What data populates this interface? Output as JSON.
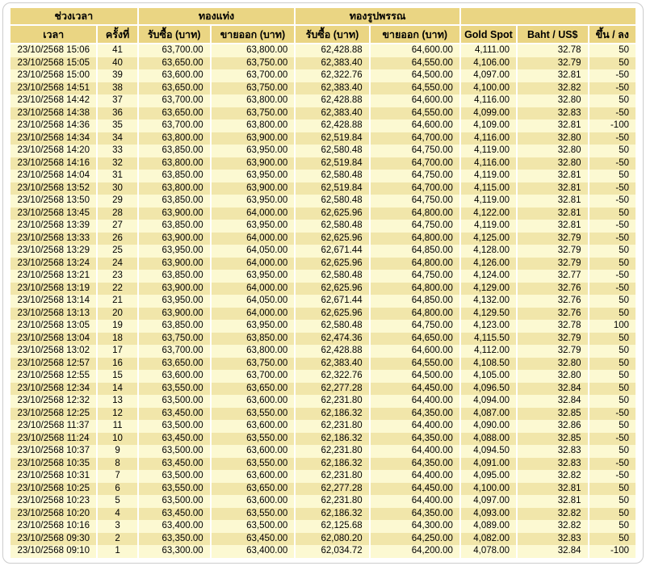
{
  "colors": {
    "header_bg": "#EAD583",
    "row_light": "#FCF9D2",
    "row_dark": "#F1E6AA",
    "separator": "#FFFFFF",
    "frame_border": "#CCCCCC",
    "text": "#000000"
  },
  "chart_data": {
    "type": "table",
    "header_groups": [
      {
        "label": "ช่วงเวลา",
        "colspan": 2
      },
      {
        "label": "ทองแท่ง",
        "colspan": 2
      },
      {
        "label": "ทองรูปพรรณ",
        "colspan": 2
      },
      {
        "label": "",
        "colspan": 3
      }
    ],
    "columns": [
      "เวลา",
      "ครั้งที่",
      "รับซื้อ (บาท)",
      "ขายออก (บาท)",
      "รับซื้อ (บาท)",
      "ขายออก (บาท)",
      "Gold Spot",
      "Baht / US$",
      "ขึ้น / ลง"
    ],
    "rows": [
      [
        "23/10/2568 15:06",
        "41",
        "63,700.00",
        "63,800.00",
        "62,428.88",
        "64,600.00",
        "4,111.00",
        "32.78",
        "50"
      ],
      [
        "23/10/2568 15:05",
        "40",
        "63,650.00",
        "63,750.00",
        "62,383.40",
        "64,550.00",
        "4,106.00",
        "32.79",
        "50"
      ],
      [
        "23/10/2568 15:00",
        "39",
        "63,600.00",
        "63,700.00",
        "62,322.76",
        "64,500.00",
        "4,097.00",
        "32.81",
        "-50"
      ],
      [
        "23/10/2568 14:51",
        "38",
        "63,650.00",
        "63,750.00",
        "62,383.40",
        "64,550.00",
        "4,100.00",
        "32.82",
        "-50"
      ],
      [
        "23/10/2568 14:42",
        "37",
        "63,700.00",
        "63,800.00",
        "62,428.88",
        "64,600.00",
        "4,116.00",
        "32.80",
        "50"
      ],
      [
        "23/10/2568 14:38",
        "36",
        "63,650.00",
        "63,750.00",
        "62,383.40",
        "64,550.00",
        "4,099.00",
        "32.83",
        "-50"
      ],
      [
        "23/10/2568 14:36",
        "35",
        "63,700.00",
        "63,800.00",
        "62,428.88",
        "64,600.00",
        "4,109.00",
        "32.81",
        "-100"
      ],
      [
        "23/10/2568 14:34",
        "34",
        "63,800.00",
        "63,900.00",
        "62,519.84",
        "64,700.00",
        "4,116.00",
        "32.80",
        "-50"
      ],
      [
        "23/10/2568 14:20",
        "33",
        "63,850.00",
        "63,950.00",
        "62,580.48",
        "64,750.00",
        "4,119.00",
        "32.80",
        "50"
      ],
      [
        "23/10/2568 14:16",
        "32",
        "63,800.00",
        "63,900.00",
        "62,519.84",
        "64,700.00",
        "4,116.00",
        "32.80",
        "-50"
      ],
      [
        "23/10/2568 14:04",
        "31",
        "63,850.00",
        "63,950.00",
        "62,580.48",
        "64,750.00",
        "4,119.00",
        "32.81",
        "50"
      ],
      [
        "23/10/2568 13:52",
        "30",
        "63,800.00",
        "63,900.00",
        "62,519.84",
        "64,700.00",
        "4,115.00",
        "32.81",
        "-50"
      ],
      [
        "23/10/2568 13:50",
        "29",
        "63,850.00",
        "63,950.00",
        "62,580.48",
        "64,750.00",
        "4,119.00",
        "32.81",
        "-50"
      ],
      [
        "23/10/2568 13:45",
        "28",
        "63,900.00",
        "64,000.00",
        "62,625.96",
        "64,800.00",
        "4,122.00",
        "32.81",
        "50"
      ],
      [
        "23/10/2568 13:39",
        "27",
        "63,850.00",
        "63,950.00",
        "62,580.48",
        "64,750.00",
        "4,119.00",
        "32.81",
        "-50"
      ],
      [
        "23/10/2568 13:33",
        "26",
        "63,900.00",
        "64,000.00",
        "62,625.96",
        "64,800.00",
        "4,125.00",
        "32.79",
        "-50"
      ],
      [
        "23/10/2568 13:29",
        "25",
        "63,950.00",
        "64,050.00",
        "62,671.44",
        "64,850.00",
        "4,128.00",
        "32.79",
        "50"
      ],
      [
        "23/10/2568 13:24",
        "24",
        "63,900.00",
        "64,000.00",
        "62,625.96",
        "64,800.00",
        "4,126.00",
        "32.79",
        "50"
      ],
      [
        "23/10/2568 13:21",
        "23",
        "63,850.00",
        "63,950.00",
        "62,580.48",
        "64,750.00",
        "4,124.00",
        "32.77",
        "-50"
      ],
      [
        "23/10/2568 13:19",
        "22",
        "63,900.00",
        "64,000.00",
        "62,625.96",
        "64,800.00",
        "4,129.00",
        "32.76",
        "-50"
      ],
      [
        "23/10/2568 13:14",
        "21",
        "63,950.00",
        "64,050.00",
        "62,671.44",
        "64,850.00",
        "4,132.00",
        "32.76",
        "50"
      ],
      [
        "23/10/2568 13:13",
        "20",
        "63,900.00",
        "64,000.00",
        "62,625.96",
        "64,800.00",
        "4,129.50",
        "32.76",
        "50"
      ],
      [
        "23/10/2568 13:05",
        "19",
        "63,850.00",
        "63,950.00",
        "62,580.48",
        "64,750.00",
        "4,123.00",
        "32.78",
        "100"
      ],
      [
        "23/10/2568 13:04",
        "18",
        "63,750.00",
        "63,850.00",
        "62,474.36",
        "64,650.00",
        "4,115.50",
        "32.79",
        "50"
      ],
      [
        "23/10/2568 13:02",
        "17",
        "63,700.00",
        "63,800.00",
        "62,428.88",
        "64,600.00",
        "4,112.00",
        "32.79",
        "50"
      ],
      [
        "23/10/2568 12:57",
        "16",
        "63,650.00",
        "63,750.00",
        "62,383.40",
        "64,550.00",
        "4,108.50",
        "32.80",
        "50"
      ],
      [
        "23/10/2568 12:55",
        "15",
        "63,600.00",
        "63,700.00",
        "62,322.76",
        "64,500.00",
        "4,105.00",
        "32.80",
        "50"
      ],
      [
        "23/10/2568 12:34",
        "14",
        "63,550.00",
        "63,650.00",
        "62,277.28",
        "64,450.00",
        "4,096.50",
        "32.84",
        "50"
      ],
      [
        "23/10/2568 12:32",
        "13",
        "63,500.00",
        "63,600.00",
        "62,231.80",
        "64,400.00",
        "4,094.00",
        "32.84",
        "50"
      ],
      [
        "23/10/2568 12:25",
        "12",
        "63,450.00",
        "63,550.00",
        "62,186.32",
        "64,350.00",
        "4,087.00",
        "32.85",
        "-50"
      ],
      [
        "23/10/2568 11:37",
        "11",
        "63,500.00",
        "63,600.00",
        "62,231.80",
        "64,400.00",
        "4,090.00",
        "32.86",
        "50"
      ],
      [
        "23/10/2568 11:24",
        "10",
        "63,450.00",
        "63,550.00",
        "62,186.32",
        "64,350.00",
        "4,088.00",
        "32.85",
        "-50"
      ],
      [
        "23/10/2568 10:37",
        "9",
        "63,500.00",
        "63,600.00",
        "62,231.80",
        "64,400.00",
        "4,094.50",
        "32.83",
        "50"
      ],
      [
        "23/10/2568 10:35",
        "8",
        "63,450.00",
        "63,550.00",
        "62,186.32",
        "64,350.00",
        "4,091.00",
        "32.83",
        "-50"
      ],
      [
        "23/10/2568 10:31",
        "7",
        "63,500.00",
        "63,600.00",
        "62,231.80",
        "64,400.00",
        "4,095.00",
        "32.82",
        "-50"
      ],
      [
        "23/10/2568 10:25",
        "6",
        "63,550.00",
        "63,650.00",
        "62,277.28",
        "64,450.00",
        "4,100.00",
        "32.81",
        "50"
      ],
      [
        "23/10/2568 10:23",
        "5",
        "63,500.00",
        "63,600.00",
        "62,231.80",
        "64,400.00",
        "4,097.00",
        "32.81",
        "50"
      ],
      [
        "23/10/2568 10:20",
        "4",
        "63,450.00",
        "63,550.00",
        "62,186.32",
        "64,350.00",
        "4,093.00",
        "32.82",
        "50"
      ],
      [
        "23/10/2568 10:16",
        "3",
        "63,400.00",
        "63,500.00",
        "62,125.68",
        "64,300.00",
        "4,089.00",
        "32.82",
        "50"
      ],
      [
        "23/10/2568 09:30",
        "2",
        "63,350.00",
        "63,450.00",
        "62,080.20",
        "64,250.00",
        "4,082.00",
        "32.83",
        "50"
      ],
      [
        "23/10/2568 09:10",
        "1",
        "63,300.00",
        "63,400.00",
        "62,034.72",
        "64,200.00",
        "4,078.00",
        "32.84",
        "-100"
      ]
    ]
  }
}
